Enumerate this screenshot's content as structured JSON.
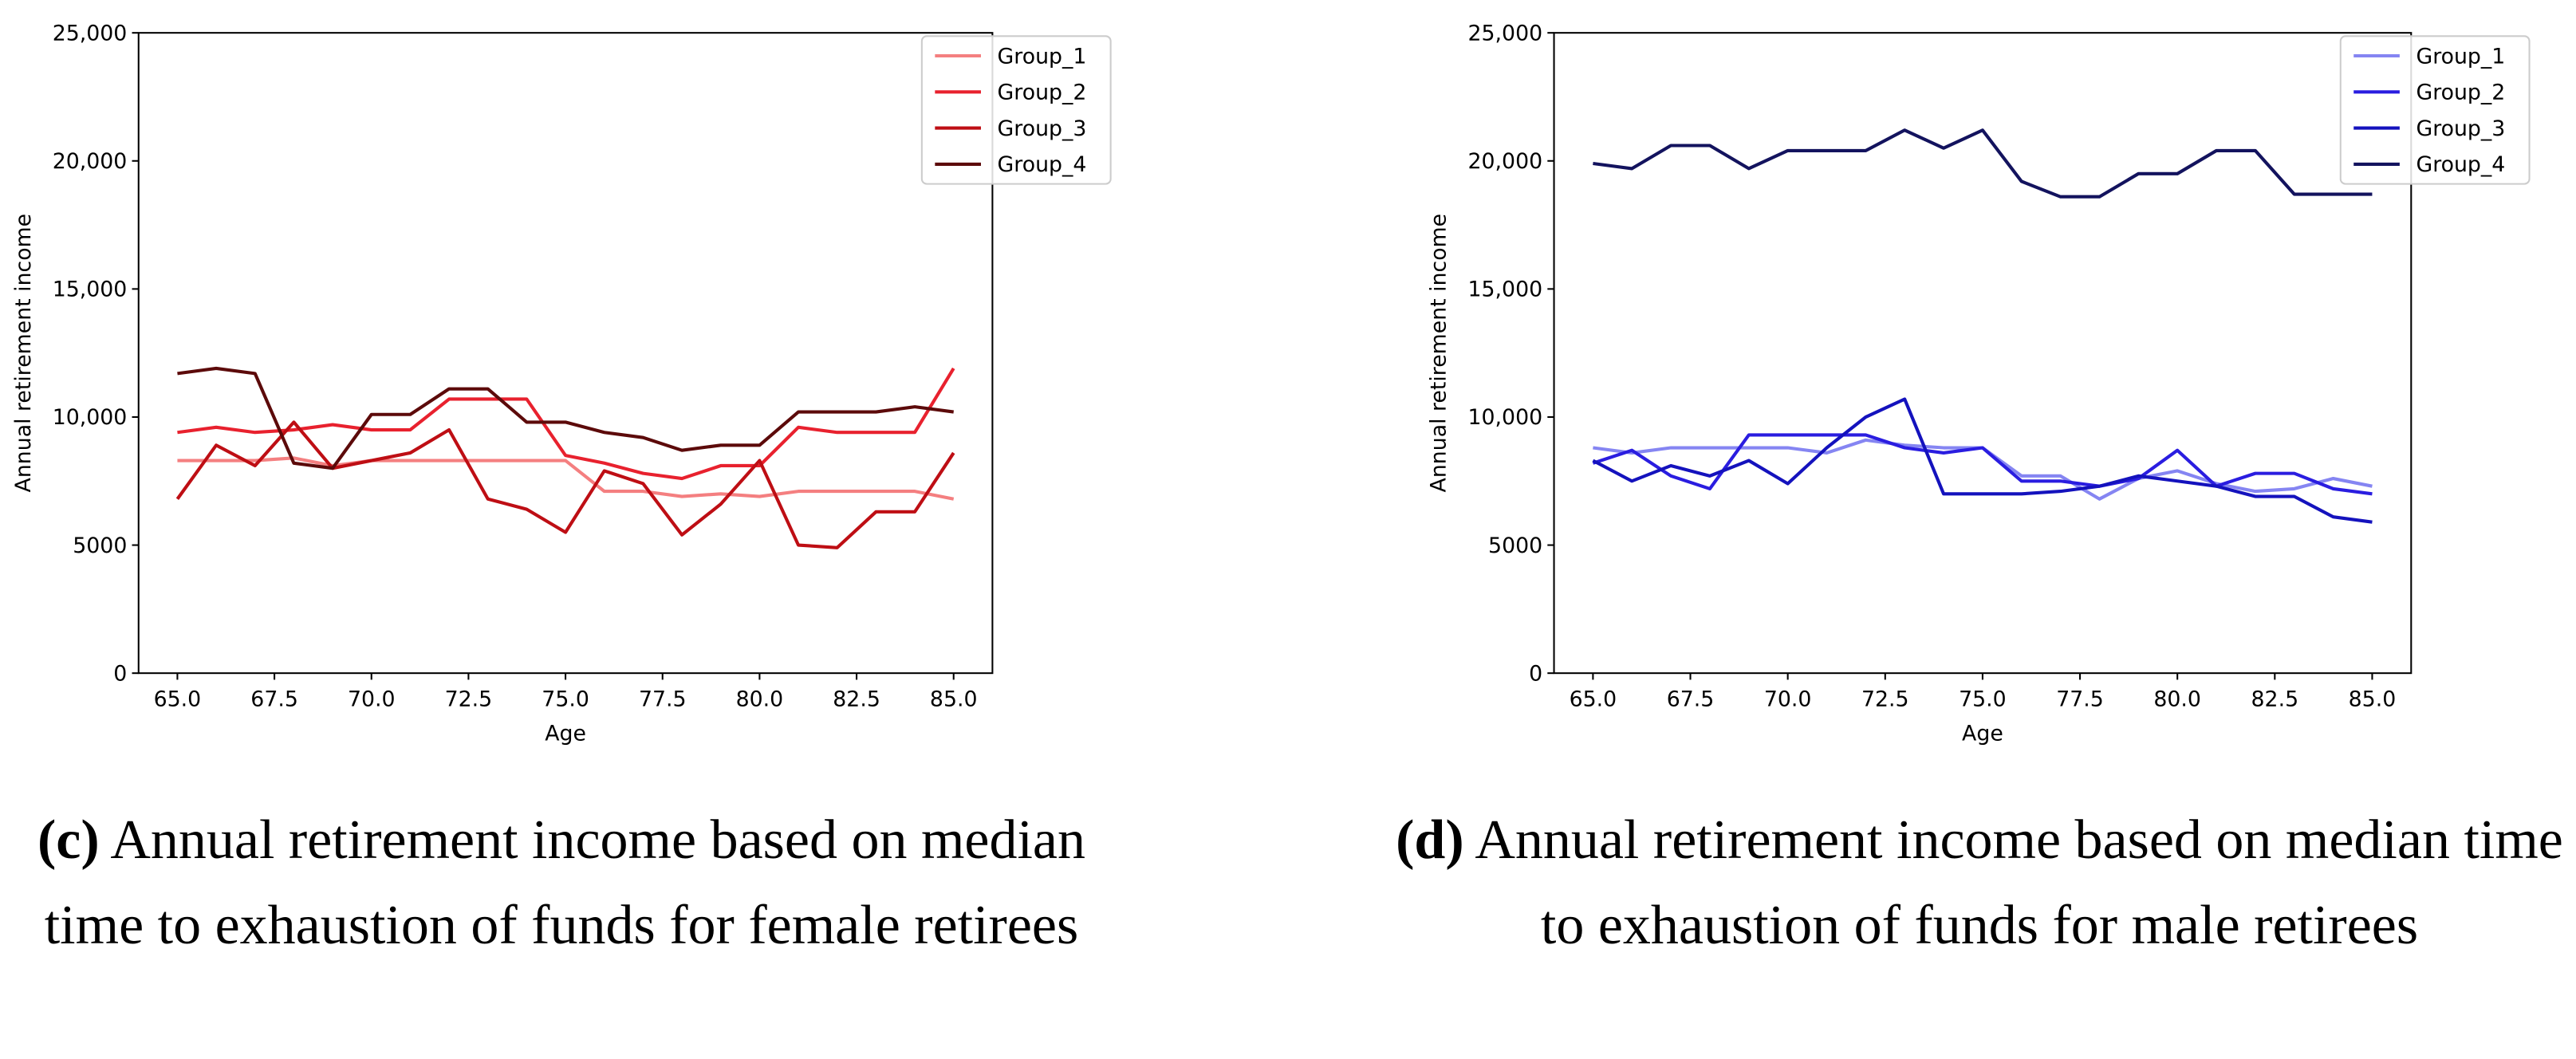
{
  "chart_data": [
    {
      "type": "line",
      "xlabel": "Age",
      "ylabel": "Annual retirement income",
      "caption": {
        "label": "(c)",
        "text": "Annual retirement income based on median time to exhaustion of funds for female retirees"
      },
      "x": [
        65,
        66,
        67,
        68,
        69,
        70,
        71,
        72,
        73,
        74,
        75,
        76,
        77,
        78,
        79,
        80,
        81,
        82,
        83,
        84,
        85
      ],
      "series": [
        {
          "name": "Group_1",
          "color": "#f47f80",
          "values": [
            8300,
            8300,
            8300,
            8400,
            8100,
            8300,
            8300,
            8300,
            8300,
            8300,
            8300,
            7100,
            7100,
            6900,
            7000,
            6900,
            7100,
            7100,
            7100,
            7100,
            6800
          ]
        },
        {
          "name": "Group_2",
          "color": "#e8212e",
          "values": [
            9400,
            9600,
            9400,
            9500,
            9700,
            9500,
            9500,
            10700,
            10700,
            10700,
            8500,
            8200,
            7800,
            7600,
            8100,
            8100,
            9600,
            9400,
            9400,
            9400,
            11900
          ]
        },
        {
          "name": "Group_3",
          "color": "#be0e14",
          "values": [
            6800,
            8900,
            8100,
            9800,
            8000,
            8300,
            8600,
            9500,
            6800,
            6400,
            5500,
            7900,
            7400,
            5400,
            6600,
            8300,
            5000,
            4900,
            6300,
            6300,
            8600
          ]
        },
        {
          "name": "Group_4",
          "color": "#5c0a0a",
          "values": [
            11700,
            11900,
            11700,
            8200,
            8000,
            10100,
            10100,
            11100,
            11100,
            9800,
            9800,
            9400,
            9200,
            8700,
            8900,
            8900,
            10200,
            10200,
            10200,
            10400,
            10200
          ]
        }
      ],
      "xlim": [
        64,
        86
      ],
      "ylim": [
        0,
        25000
      ],
      "xticks": [
        {
          "value": 65,
          "label": "65.0"
        },
        {
          "value": 67.5,
          "label": "67.5"
        },
        {
          "value": 70,
          "label": "70.0"
        },
        {
          "value": 72.5,
          "label": "72.5"
        },
        {
          "value": 75,
          "label": "75.0"
        },
        {
          "value": 77.5,
          "label": "77.5"
        },
        {
          "value": 80,
          "label": "80.0"
        },
        {
          "value": 82.5,
          "label": "82.5"
        },
        {
          "value": 85,
          "label": "85.0"
        }
      ],
      "yticks": [
        0,
        5000,
        {
          "value": 10000,
          "label": "10,000"
        },
        {
          "value": 15000,
          "label": "15,000"
        },
        {
          "value": 20000,
          "label": "20,000"
        },
        {
          "value": 25000,
          "label": "25,000"
        }
      ],
      "legend": "upper right"
    },
    {
      "type": "line",
      "xlabel": "Age",
      "ylabel": "Annual retirement income",
      "caption": {
        "label": "(d)",
        "text": "Annual retirement income based on median time to exhaustion of funds for male retirees"
      },
      "x": [
        65,
        66,
        67,
        68,
        69,
        70,
        71,
        72,
        73,
        74,
        75,
        76,
        77,
        78,
        79,
        80,
        81,
        82,
        83,
        84,
        85
      ],
      "series": [
        {
          "name": "Group_1",
          "color": "#8585f2",
          "values": [
            8800,
            8600,
            8800,
            8800,
            8800,
            8800,
            8600,
            9100,
            8900,
            8800,
            8800,
            7700,
            7700,
            6800,
            7600,
            7900,
            7400,
            7100,
            7200,
            7600,
            7300
          ]
        },
        {
          "name": "Group_2",
          "color": "#2a1de0",
          "values": [
            8200,
            8700,
            7700,
            7200,
            9300,
            9300,
            9300,
            9300,
            8800,
            8600,
            8800,
            7500,
            7500,
            7300,
            7600,
            8700,
            7300,
            7800,
            7800,
            7200,
            7000
          ]
        },
        {
          "name": "Group_3",
          "color": "#1412bd",
          "values": [
            8300,
            7500,
            8100,
            7700,
            8300,
            7400,
            8800,
            10000,
            10700,
            7000,
            7000,
            7000,
            7100,
            7300,
            7700,
            7500,
            7300,
            6900,
            6900,
            6100,
            5900
          ]
        },
        {
          "name": "Group_4",
          "color": "#13135e",
          "values": [
            19900,
            19700,
            20600,
            20600,
            19700,
            20400,
            20400,
            20400,
            21200,
            20500,
            21200,
            19200,
            18600,
            18600,
            19500,
            19500,
            20400,
            20400,
            18700,
            18700,
            18700
          ]
        }
      ],
      "xlim": [
        64,
        86
      ],
      "ylim": [
        0,
        25000
      ],
      "xticks": [
        {
          "value": 65,
          "label": "65.0"
        },
        {
          "value": 67.5,
          "label": "67.5"
        },
        {
          "value": 70,
          "label": "70.0"
        },
        {
          "value": 72.5,
          "label": "72.5"
        },
        {
          "value": 75,
          "label": "75.0"
        },
        {
          "value": 77.5,
          "label": "77.5"
        },
        {
          "value": 80,
          "label": "80.0"
        },
        {
          "value": 82.5,
          "label": "82.5"
        },
        {
          "value": 85,
          "label": "85.0"
        }
      ],
      "yticks": [
        0,
        5000,
        {
          "value": 10000,
          "label": "10,000"
        },
        {
          "value": 15000,
          "label": "15,000"
        },
        {
          "value": 20000,
          "label": "20,000"
        },
        {
          "value": 25000,
          "label": "25,000"
        }
      ],
      "legend": "upper right"
    }
  ]
}
